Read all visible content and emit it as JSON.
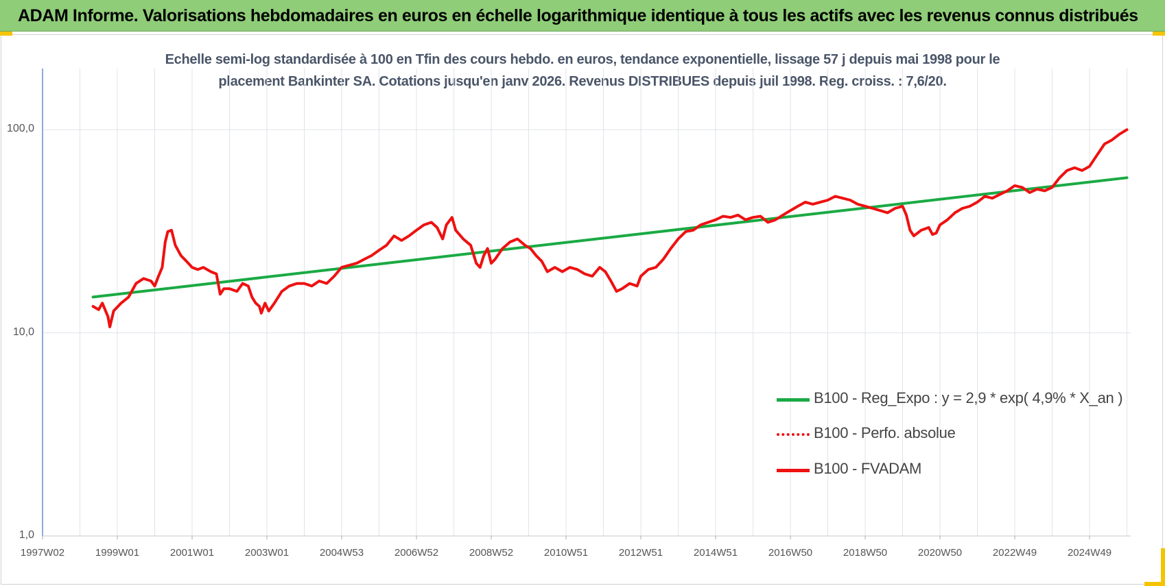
{
  "banner": {
    "title": "ADAM Informe. Valorisations hebdomadaires en euros en échelle logarithmique identique à tous les actifs avec les revenus connus distribués"
  },
  "colors": {
    "banner_bg": "#8fcd78",
    "corner_marks": "#f5c400",
    "regression": "#1aaa44",
    "fvadam": "#ee1111",
    "perfo": "#ee1111"
  },
  "chart_data": {
    "type": "line",
    "subtitle_lines": [
      "Echelle semi-log standardisée à 100 en Tfin des cours hebdo. en euros, tendance exponentielle, lissage 57 j depuis mai 1998 pour le",
      "placement Bankinter SA. Cotations jusqu'en janv 2026. Revenus DISTRIBUES depuis juil 1998. Reg. croiss. : 7,6/20."
    ],
    "y_scale": "log",
    "ylim": [
      1,
      200
    ],
    "y_ticks": [
      {
        "value": 100,
        "label": "100,0"
      },
      {
        "value": 10,
        "label": "10,0"
      },
      {
        "value": 1,
        "label": "1,0"
      }
    ],
    "xlim": [
      1997.0,
      2026.1
    ],
    "x_ticks": [
      {
        "value": 1997.0,
        "label": "1997W02"
      },
      {
        "value": 1999.0,
        "label": "1999W01"
      },
      {
        "value": 2001.0,
        "label": "2001W01"
      },
      {
        "value": 2003.0,
        "label": "2003W01"
      },
      {
        "value": 2005.0,
        "label": "2004W53"
      },
      {
        "value": 2007.0,
        "label": "2006W52"
      },
      {
        "value": 2009.0,
        "label": "2008W52"
      },
      {
        "value": 2011.0,
        "label": "2010W51"
      },
      {
        "value": 2013.0,
        "label": "2012W51"
      },
      {
        "value": 2015.0,
        "label": "2014W51"
      },
      {
        "value": 2017.0,
        "label": "2016W50"
      },
      {
        "value": 2019.0,
        "label": "2018W50"
      },
      {
        "value": 2021.0,
        "label": "2020W50"
      },
      {
        "value": 2023.0,
        "label": "2022W49"
      },
      {
        "value": 2025.0,
        "label": "2024W49"
      }
    ],
    "grid": "vertical and horizontal",
    "legend_position": "center-right",
    "series": [
      {
        "name": "B100 - Reg_Expo : y = 2,9 * exp( 4,9% *  X_an )",
        "style": "solid",
        "color": "#1aaa44",
        "points": [
          [
            1998.35,
            15.0
          ],
          [
            2026.0,
            58.0
          ]
        ]
      },
      {
        "name": "B100 - Perfo. absolue",
        "style": "dotted",
        "color": "#ee1111",
        "points": []
      },
      {
        "name": "B100 - FVADAM",
        "style": "solid",
        "color": "#ee1111",
        "points": [
          [
            1998.35,
            13.5
          ],
          [
            1998.5,
            13.0
          ],
          [
            1998.6,
            14.0
          ],
          [
            1998.75,
            12.0
          ],
          [
            1998.8,
            10.7
          ],
          [
            1998.9,
            12.8
          ],
          [
            1999.1,
            14.0
          ],
          [
            1999.3,
            15.0
          ],
          [
            1999.5,
            17.5
          ],
          [
            1999.7,
            18.5
          ],
          [
            1999.9,
            18.0
          ],
          [
            2000.0,
            17.0
          ],
          [
            2000.1,
            19.0
          ],
          [
            2000.2,
            21.0
          ],
          [
            2000.28,
            28.0
          ],
          [
            2000.35,
            31.5
          ],
          [
            2000.45,
            32.0
          ],
          [
            2000.55,
            27.0
          ],
          [
            2000.7,
            24.0
          ],
          [
            2000.85,
            22.5
          ],
          [
            2001.0,
            21.0
          ],
          [
            2001.15,
            20.5
          ],
          [
            2001.3,
            21.0
          ],
          [
            2001.5,
            20.0
          ],
          [
            2001.65,
            19.5
          ],
          [
            2001.75,
            15.5
          ],
          [
            2001.85,
            16.5
          ],
          [
            2002.0,
            16.5
          ],
          [
            2002.2,
            16.0
          ],
          [
            2002.35,
            17.5
          ],
          [
            2002.5,
            17.0
          ],
          [
            2002.6,
            15.0
          ],
          [
            2002.7,
            14.0
          ],
          [
            2002.8,
            13.5
          ],
          [
            2002.85,
            12.5
          ],
          [
            2002.95,
            14.0
          ],
          [
            2003.05,
            12.8
          ],
          [
            2003.2,
            14.0
          ],
          [
            2003.4,
            16.0
          ],
          [
            2003.6,
            17.0
          ],
          [
            2003.8,
            17.5
          ],
          [
            2004.0,
            17.5
          ],
          [
            2004.2,
            17.0
          ],
          [
            2004.4,
            18.0
          ],
          [
            2004.6,
            17.5
          ],
          [
            2004.8,
            19.0
          ],
          [
            2005.0,
            21.0
          ],
          [
            2005.2,
            21.5
          ],
          [
            2005.4,
            22.0
          ],
          [
            2005.6,
            23.0
          ],
          [
            2005.8,
            24.0
          ],
          [
            2006.0,
            25.5
          ],
          [
            2006.2,
            27.0
          ],
          [
            2006.4,
            30.0
          ],
          [
            2006.6,
            28.5
          ],
          [
            2006.8,
            30.0
          ],
          [
            2007.0,
            32.0
          ],
          [
            2007.2,
            34.0
          ],
          [
            2007.4,
            35.0
          ],
          [
            2007.55,
            33.0
          ],
          [
            2007.7,
            29.0
          ],
          [
            2007.8,
            34.0
          ],
          [
            2007.95,
            37.0
          ],
          [
            2008.05,
            32.0
          ],
          [
            2008.25,
            29.0
          ],
          [
            2008.45,
            27.0
          ],
          [
            2008.6,
            22.0
          ],
          [
            2008.7,
            21.0
          ],
          [
            2008.8,
            24.0
          ],
          [
            2008.9,
            26.0
          ],
          [
            2009.0,
            22.0
          ],
          [
            2009.1,
            23.0
          ],
          [
            2009.3,
            26.0
          ],
          [
            2009.5,
            28.0
          ],
          [
            2009.7,
            29.0
          ],
          [
            2009.9,
            27.0
          ],
          [
            2010.05,
            26.0
          ],
          [
            2010.2,
            24.0
          ],
          [
            2010.35,
            22.5
          ],
          [
            2010.5,
            20.0
          ],
          [
            2010.7,
            21.0
          ],
          [
            2010.9,
            20.0
          ],
          [
            2011.1,
            21.0
          ],
          [
            2011.3,
            20.5
          ],
          [
            2011.5,
            19.5
          ],
          [
            2011.7,
            19.0
          ],
          [
            2011.9,
            21.0
          ],
          [
            2012.05,
            20.0
          ],
          [
            2012.2,
            18.0
          ],
          [
            2012.35,
            16.0
          ],
          [
            2012.5,
            16.5
          ],
          [
            2012.7,
            17.5
          ],
          [
            2012.9,
            17.0
          ],
          [
            2013.0,
            19.0
          ],
          [
            2013.2,
            20.5
          ],
          [
            2013.4,
            21.0
          ],
          [
            2013.6,
            23.0
          ],
          [
            2013.8,
            26.0
          ],
          [
            2014.0,
            29.0
          ],
          [
            2014.2,
            31.5
          ],
          [
            2014.4,
            32.0
          ],
          [
            2014.6,
            34.0
          ],
          [
            2014.8,
            35.0
          ],
          [
            2015.0,
            36.0
          ],
          [
            2015.2,
            37.5
          ],
          [
            2015.4,
            37.0
          ],
          [
            2015.6,
            38.0
          ],
          [
            2015.8,
            36.0
          ],
          [
            2016.0,
            37.0
          ],
          [
            2016.2,
            37.5
          ],
          [
            2016.4,
            35.0
          ],
          [
            2016.6,
            36.0
          ],
          [
            2016.8,
            38.0
          ],
          [
            2017.0,
            40.0
          ],
          [
            2017.2,
            42.0
          ],
          [
            2017.4,
            44.0
          ],
          [
            2017.6,
            43.0
          ],
          [
            2017.8,
            44.0
          ],
          [
            2018.0,
            45.0
          ],
          [
            2018.2,
            47.0
          ],
          [
            2018.4,
            46.0
          ],
          [
            2018.6,
            45.0
          ],
          [
            2018.8,
            43.0
          ],
          [
            2019.0,
            42.0
          ],
          [
            2019.2,
            41.0
          ],
          [
            2019.4,
            40.0
          ],
          [
            2019.6,
            39.0
          ],
          [
            2019.8,
            41.0
          ],
          [
            2020.0,
            42.0
          ],
          [
            2020.1,
            38.0
          ],
          [
            2020.2,
            32.0
          ],
          [
            2020.3,
            30.0
          ],
          [
            2020.5,
            32.0
          ],
          [
            2020.7,
            33.0
          ],
          [
            2020.8,
            30.5
          ],
          [
            2020.9,
            31.0
          ],
          [
            2021.0,
            34.0
          ],
          [
            2021.2,
            36.0
          ],
          [
            2021.4,
            39.0
          ],
          [
            2021.6,
            41.0
          ],
          [
            2021.8,
            42.0
          ],
          [
            2022.0,
            44.0
          ],
          [
            2022.2,
            47.0
          ],
          [
            2022.4,
            46.0
          ],
          [
            2022.6,
            48.0
          ],
          [
            2022.8,
            50.0
          ],
          [
            2023.0,
            53.0
          ],
          [
            2023.2,
            52.0
          ],
          [
            2023.4,
            49.0
          ],
          [
            2023.6,
            51.0
          ],
          [
            2023.8,
            50.0
          ],
          [
            2024.0,
            52.0
          ],
          [
            2024.2,
            58.0
          ],
          [
            2024.4,
            63.0
          ],
          [
            2024.6,
            65.0
          ],
          [
            2024.8,
            63.0
          ],
          [
            2025.0,
            66.0
          ],
          [
            2025.2,
            75.0
          ],
          [
            2025.4,
            85.0
          ],
          [
            2025.6,
            89.0
          ],
          [
            2025.8,
            95.0
          ],
          [
            2026.0,
            100.0
          ]
        ]
      }
    ]
  }
}
